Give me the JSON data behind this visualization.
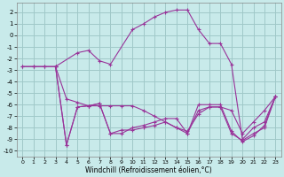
{
  "xlabel": "Windchill (Refroidissement éolien,°C)",
  "background_color": "#c8eaea",
  "grid_color": "#a0c8c8",
  "line_color": "#993399",
  "xlim": [
    -0.5,
    23.5
  ],
  "ylim": [
    -10.5,
    2.8
  ],
  "xticks": [
    0,
    1,
    2,
    3,
    4,
    5,
    6,
    7,
    8,
    9,
    10,
    11,
    12,
    13,
    14,
    15,
    16,
    17,
    18,
    19,
    20,
    21,
    22,
    23
  ],
  "yticks": [
    -10,
    -9,
    -8,
    -7,
    -6,
    -5,
    -4,
    -3,
    -2,
    -1,
    0,
    1,
    2
  ],
  "series1_x": [
    0,
    1,
    2,
    3,
    5,
    6,
    7,
    8,
    10,
    11,
    12,
    13,
    14,
    15,
    16,
    17,
    18,
    19,
    20,
    21,
    22,
    23
  ],
  "series1_y": [
    -2.7,
    -2.7,
    -2.7,
    -2.7,
    -1.5,
    -1.3,
    -2.2,
    -2.5,
    0.5,
    1.0,
    1.6,
    2.0,
    2.2,
    2.2,
    0.5,
    -0.7,
    -0.7,
    -2.5,
    -9.0,
    -8.0,
    -7.5,
    -5.3
  ],
  "series2_x": [
    0,
    1,
    2,
    3,
    4,
    5,
    6,
    7,
    8,
    9,
    10,
    11,
    12,
    13,
    14,
    15,
    16,
    17,
    18,
    19,
    20,
    21,
    22,
    23
  ],
  "series2_y": [
    -2.7,
    -2.7,
    -2.7,
    -2.7,
    -5.5,
    -5.8,
    -6.1,
    -6.1,
    -6.1,
    -6.1,
    -6.1,
    -6.5,
    -7.0,
    -7.5,
    -8.0,
    -8.3,
    -6.8,
    -6.2,
    -6.2,
    -6.5,
    -8.5,
    -7.5,
    -6.5,
    -5.3
  ],
  "series3_x": [
    3,
    4,
    5,
    6,
    7,
    8,
    9,
    10,
    11,
    12,
    13,
    14,
    15,
    16,
    17,
    18,
    19,
    20,
    21,
    22,
    23
  ],
  "series3_y": [
    -2.7,
    -9.5,
    -6.2,
    -6.1,
    -5.9,
    -8.5,
    -8.5,
    -8.0,
    -7.8,
    -7.5,
    -7.2,
    -7.2,
    -8.5,
    -6.0,
    -6.0,
    -6.0,
    -8.3,
    -9.2,
    -8.7,
    -7.8,
    -5.3
  ],
  "series4_x": [
    3,
    4,
    5,
    6,
    7,
    8,
    9,
    10,
    11,
    12,
    13,
    14,
    15,
    16,
    17,
    18,
    19,
    20,
    21,
    22,
    23
  ],
  "series4_y": [
    -2.7,
    -9.5,
    -6.2,
    -6.1,
    -5.9,
    -8.5,
    -8.2,
    -8.2,
    -8.0,
    -7.8,
    -7.5,
    -8.0,
    -8.5,
    -6.5,
    -6.2,
    -6.2,
    -8.5,
    -9.1,
    -8.5,
    -8.0,
    -5.3
  ]
}
